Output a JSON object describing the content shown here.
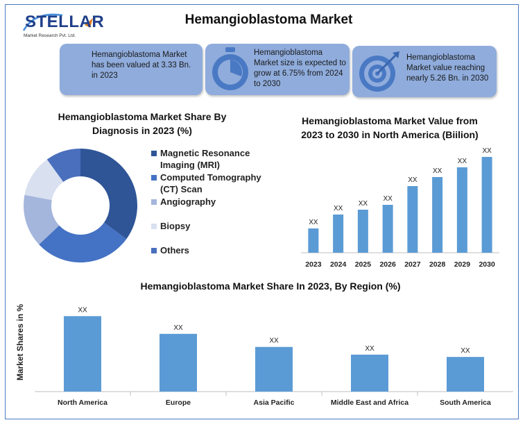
{
  "logo": {
    "name": "STELLAR",
    "subtitle": "Market Research Pvt. Ltd."
  },
  "title": "Hemangioblastoma Market",
  "cards": [
    {
      "text_lines": [
        "Hemangioblastoma Market",
        "has been valued at 3.33 Bn.",
        "in 2023"
      ],
      "icon": "none"
    },
    {
      "text_lines": [
        "Hemangioblastoma",
        "Market size is expected to",
        "grow at 6.75% from 2024",
        "to 2030"
      ],
      "icon": "stopwatch-icon"
    },
    {
      "text_lines": [
        "Hemangioblastoma",
        "Market value reaching",
        "nearly 5.26 Bn. in 2030"
      ],
      "icon": "target-icon"
    }
  ],
  "colors": {
    "accent": "#4a79c4",
    "card_bg": "#8facdc",
    "bar": "#5b9bd5"
  },
  "chart_data": [
    {
      "type": "pie",
      "title_lines": [
        "Hemangioblastoma Market  Share By",
        "Diagnosis  in 2023 (%)"
      ],
      "donut": true,
      "slices": [
        {
          "label_lines": [
            "Magnetic Resonance",
            "Imaging (MRI)"
          ],
          "value": 35,
          "color": "#2f5597"
        },
        {
          "label_lines": [
            "Computed Tomography",
            "(CT) Scan"
          ],
          "value": 28,
          "color": "#4472c4"
        },
        {
          "label_lines": [
            "Angiography"
          ],
          "value": 15,
          "color": "#a5b6dc"
        },
        {
          "label_lines": [
            "Biopsy"
          ],
          "value": 12,
          "color": "#d9e0f0"
        },
        {
          "label_lines": [
            "Others"
          ],
          "value": 10,
          "color": "#4a6fbd"
        }
      ],
      "legend_position": "right"
    },
    {
      "type": "bar",
      "title_lines": [
        "Hemangioblastoma Market Value from",
        "2023 to 2030 in North America (Biilion)"
      ],
      "categories": [
        "2023",
        "2024",
        "2025",
        "2026",
        "2027",
        "2028",
        "2029",
        "2030"
      ],
      "values": [
        35,
        55,
        62,
        69,
        96,
        109,
        123,
        138
      ],
      "data_labels": [
        "XX",
        "XX",
        "XX",
        "XX",
        "XX",
        "XX",
        "XX",
        "XX"
      ],
      "ylim": [
        0,
        150
      ],
      "grid": false
    },
    {
      "type": "bar",
      "title_lines": [
        "Hemangioblastoma Market Share In 2023, By Region (%)"
      ],
      "ylabel": "Market Shares in %",
      "categories": [
        "North America",
        "Europe",
        "Asia Pacific",
        "Middle East and Africa",
        "South America"
      ],
      "values": [
        98,
        75,
        58,
        48,
        45
      ],
      "data_labels": [
        "XX",
        "XX",
        "XX",
        "XX",
        "XX"
      ],
      "ylim": [
        0,
        110
      ],
      "grid": false
    }
  ]
}
